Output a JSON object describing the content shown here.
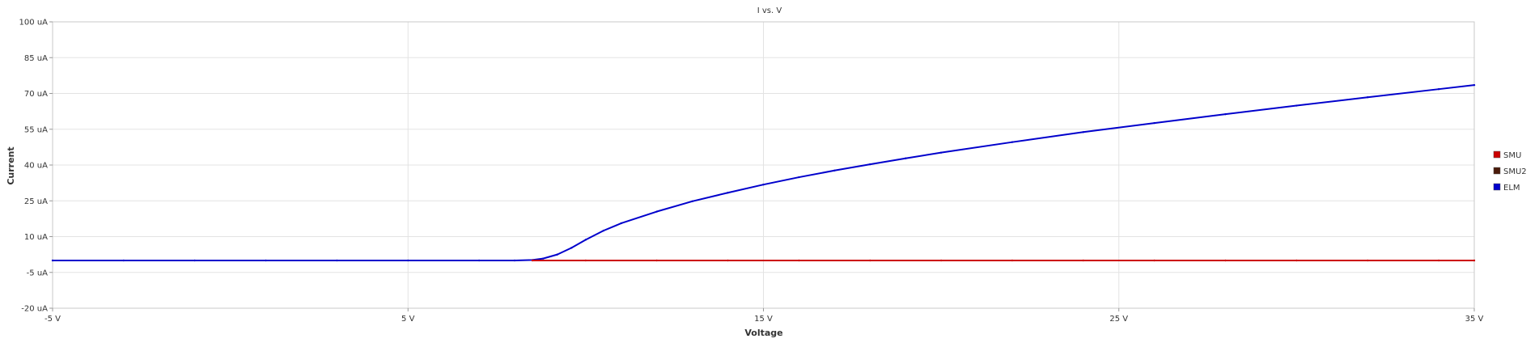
{
  "chart_data": {
    "type": "line",
    "title": "I vs. V",
    "xlabel": "Voltage",
    "ylabel": "Current",
    "xlim": [
      -5,
      35
    ],
    "ylim": [
      -20,
      100
    ],
    "x_ticks": [
      -5,
      5,
      15,
      25,
      35
    ],
    "x_tick_labels": [
      "-5 V",
      "5 V",
      "15 V",
      "25 V",
      "35 V"
    ],
    "y_ticks": [
      -20,
      -5,
      10,
      25,
      40,
      55,
      70,
      85,
      100
    ],
    "y_tick_labels": [
      "-20 uA",
      "-5 uA",
      "10 uA",
      "25 uA",
      "40 uA",
      "55 uA",
      "70 uA",
      "85 uA",
      "100 uA"
    ],
    "grid": true,
    "legend_position": "right",
    "series": [
      {
        "name": "SMU",
        "color": "#cc0000",
        "x": [
          8.5,
          10,
          12,
          14,
          16,
          18,
          20,
          22,
          24,
          26,
          28,
          30,
          32,
          34,
          35
        ],
        "y": [
          0,
          0,
          0,
          0,
          0,
          0,
          0,
          0,
          0,
          0,
          0,
          0,
          0,
          0,
          0
        ]
      },
      {
        "name": "SMU2",
        "color": "#4a1a0a",
        "x": [],
        "y": []
      },
      {
        "name": "ELM",
        "color": "#0000cc",
        "x": [
          -5,
          -3,
          -1,
          1,
          3,
          5,
          7,
          8,
          8.5,
          8.8,
          9.2,
          9.6,
          10,
          10.5,
          11,
          12,
          13,
          14,
          15,
          16,
          17,
          18,
          19,
          20,
          22,
          24,
          26,
          28,
          30,
          32,
          34,
          35
        ],
        "y": [
          0,
          0,
          0,
          0,
          0,
          0,
          0,
          0,
          0.2,
          0.8,
          2.5,
          5.3,
          8.7,
          12.5,
          15.6,
          20.5,
          24.8,
          28.4,
          31.8,
          34.9,
          37.7,
          40.3,
          42.8,
          45.2,
          49.6,
          53.8,
          57.6,
          61.3,
          64.9,
          68.4,
          71.8,
          73.5
        ]
      }
    ]
  }
}
